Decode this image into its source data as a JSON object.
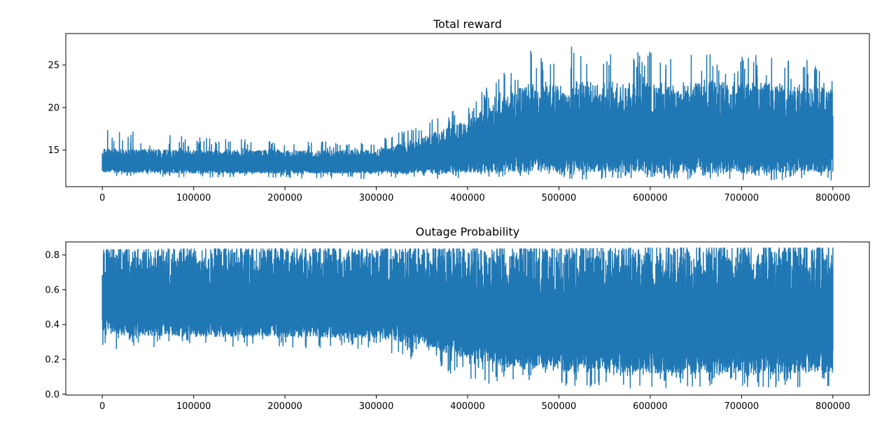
{
  "chart_data": [
    {
      "type": "line",
      "title": "Total reward",
      "xlabel": "",
      "ylabel": "",
      "xlim": [
        -40000,
        840000
      ],
      "ylim": [
        10.7,
        28.7
      ],
      "x_ticks": [
        0,
        100000,
        200000,
        300000,
        400000,
        500000,
        600000,
        700000,
        800000
      ],
      "x_tick_labels": [
        "0",
        "100000",
        "200000",
        "300000",
        "400000",
        "500000",
        "600000",
        "700000",
        "800000"
      ],
      "y_ticks": [
        15,
        20,
        25
      ],
      "y_tick_labels": [
        "15",
        "20",
        "25"
      ],
      "grid": false,
      "color": "#1f77b4",
      "x_range": [
        0,
        800000
      ],
      "envelope": {
        "x": [
          0,
          100000,
          200000,
          300000,
          350000,
          400000,
          450000,
          470000,
          500000,
          520000,
          600000,
          700000,
          800000
        ],
        "upper": [
          17.8,
          16.5,
          16.0,
          16.0,
          18.2,
          20.5,
          25.0,
          26.9,
          26.5,
          28.2,
          26.5,
          26.3,
          25.4
        ],
        "lower": [
          12.0,
          11.8,
          11.7,
          11.6,
          11.6,
          11.8,
          11.8,
          11.8,
          11.7,
          11.6,
          11.6,
          11.5,
          11.5
        ],
        "typical_high": [
          15.2,
          15.0,
          15.0,
          15.0,
          16.5,
          18.5,
          22.0,
          23.0,
          23.0,
          23.0,
          23.0,
          23.0,
          22.5
        ],
        "typical_low": [
          12.4,
          12.3,
          12.3,
          12.3,
          12.3,
          12.4,
          12.4,
          12.4,
          12.4,
          12.4,
          12.4,
          12.4,
          12.4
        ]
      }
    },
    {
      "type": "line",
      "title": "Outage Probability",
      "xlabel": "",
      "ylabel": "",
      "xlim": [
        -40000,
        840000
      ],
      "ylim": [
        -0.005,
        0.875
      ],
      "x_ticks": [
        0,
        100000,
        200000,
        300000,
        400000,
        500000,
        600000,
        700000,
        800000
      ],
      "x_tick_labels": [
        "0",
        "100000",
        "200000",
        "300000",
        "400000",
        "500000",
        "600000",
        "700000",
        "800000"
      ],
      "y_ticks": [
        0.0,
        0.2,
        0.4,
        0.6,
        0.8
      ],
      "y_tick_labels": [
        "0.0",
        "0.2",
        "0.4",
        "0.6",
        "0.8"
      ],
      "grid": false,
      "color": "#1f77b4",
      "x_range": [
        0,
        800000
      ],
      "envelope": {
        "x": [
          0,
          100000,
          200000,
          300000,
          350000,
          400000,
          450000,
          500000,
          600000,
          700000,
          800000
        ],
        "upper": [
          0.83,
          0.835,
          0.835,
          0.835,
          0.835,
          0.835,
          0.835,
          0.835,
          0.84,
          0.84,
          0.84
        ],
        "lower": [
          0.26,
          0.27,
          0.27,
          0.25,
          0.19,
          0.07,
          0.05,
          0.05,
          0.03,
          0.04,
          0.04
        ],
        "typical_low": [
          0.34,
          0.33,
          0.33,
          0.32,
          0.28,
          0.2,
          0.15,
          0.13,
          0.12,
          0.12,
          0.12
        ]
      }
    }
  ]
}
